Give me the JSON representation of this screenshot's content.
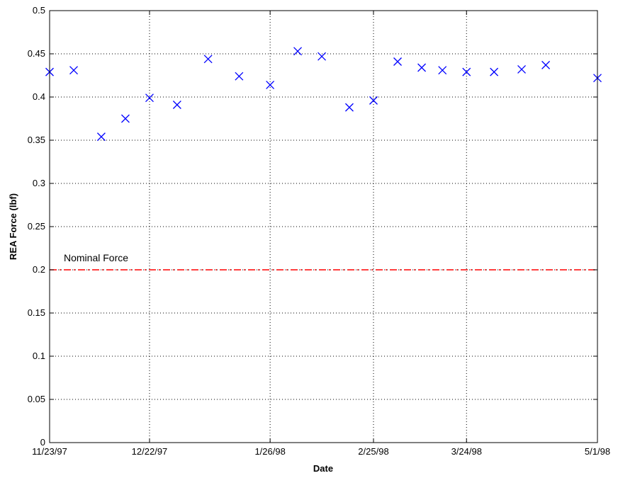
{
  "chart_data": {
    "type": "scatter",
    "title": "",
    "xlabel": "Date",
    "ylabel": "REA Force (lbf)",
    "x_ticks": [
      "11/23/97",
      "12/22/97",
      "1/26/98",
      "2/25/98",
      "3/24/98",
      "5/1/98"
    ],
    "x_tick_dates": [
      "1997-11-23",
      "1997-12-22",
      "1998-01-26",
      "1998-02-25",
      "1998-03-24",
      "1998-05-01"
    ],
    "xlim": [
      "1997-11-23",
      "1998-05-01"
    ],
    "ylim": [
      0,
      0.5
    ],
    "y_ticks": [
      "0",
      "0.05",
      "0.1",
      "0.15",
      "0.2",
      "0.25",
      "0.3",
      "0.35",
      "0.4",
      "0.45",
      "0.5"
    ],
    "grid": true,
    "series": [
      {
        "marker": "x",
        "color": "#0000ff",
        "points": [
          {
            "x": "1997-11-23",
            "y": 0.429
          },
          {
            "x": "1997-11-30",
            "y": 0.431
          },
          {
            "x": "1997-12-08",
            "y": 0.354
          },
          {
            "x": "1997-12-15",
            "y": 0.375
          },
          {
            "x": "1997-12-22",
            "y": 0.399
          },
          {
            "x": "1997-12-30",
            "y": 0.391
          },
          {
            "x": "1998-01-08",
            "y": 0.444
          },
          {
            "x": "1998-01-17",
            "y": 0.424
          },
          {
            "x": "1998-01-26",
            "y": 0.414
          },
          {
            "x": "1998-02-03",
            "y": 0.453
          },
          {
            "x": "1998-02-10",
            "y": 0.447
          },
          {
            "x": "1998-02-18",
            "y": 0.388
          },
          {
            "x": "1998-02-25",
            "y": 0.396
          },
          {
            "x": "1998-03-04",
            "y": 0.441
          },
          {
            "x": "1998-03-11",
            "y": 0.434
          },
          {
            "x": "1998-03-17",
            "y": 0.431
          },
          {
            "x": "1998-03-24",
            "y": 0.429
          },
          {
            "x": "1998-04-01",
            "y": 0.429
          },
          {
            "x": "1998-04-09",
            "y": 0.432
          },
          {
            "x": "1998-04-16",
            "y": 0.437
          },
          {
            "x": "1998-05-01",
            "y": 0.422
          }
        ]
      }
    ],
    "reference_line": {
      "y": 0.2,
      "label": "Nominal Force",
      "style": "dash-dot",
      "color": "#ff0000"
    }
  }
}
